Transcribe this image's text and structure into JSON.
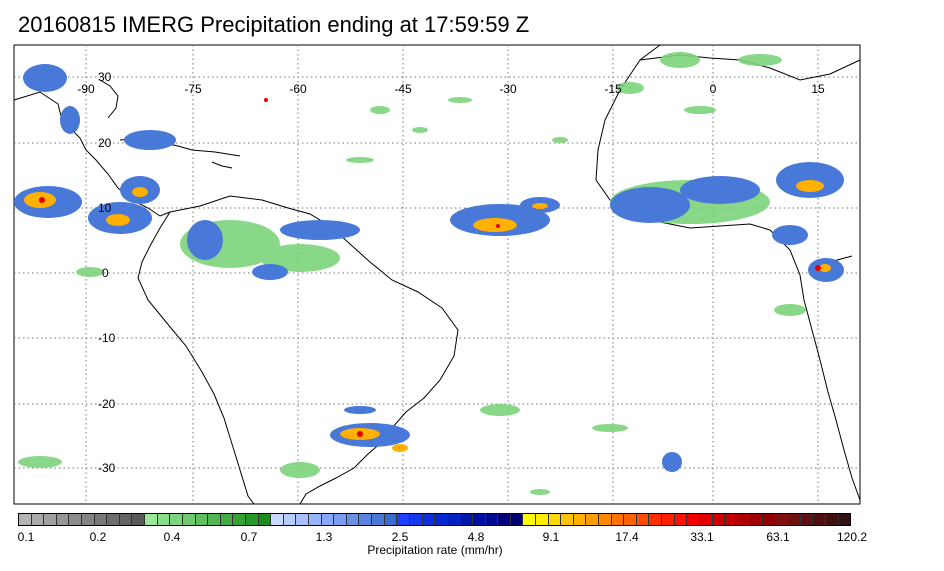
{
  "title": "20160815 IMERG Precipitation ending at 17:59:59 Z",
  "lon_labels": [
    "-90",
    "-75",
    "-60",
    "-45",
    "-30",
    "-15",
    "0",
    "15"
  ],
  "lat_labels": [
    "30",
    "20",
    "10",
    "0",
    "-10",
    "-20",
    "-30"
  ],
  "colorbar": {
    "title": "Precipitation rate (mm/hr)",
    "tick_labels": [
      "0.1",
      "0.2",
      "0.4",
      "0.7",
      "1.3",
      "2.5",
      "4.8",
      "9.1",
      "17.4",
      "33.1",
      "63.1",
      "120.2"
    ],
    "colors": [
      "#b4b4b4",
      "#aaaaaa",
      "#a0a0a0",
      "#969696",
      "#8c8c8c",
      "#828282",
      "#787878",
      "#6e6e6e",
      "#646464",
      "#5a5a5a",
      "#98e898",
      "#8ade8a",
      "#7cd47c",
      "#6eca6e",
      "#60c060",
      "#52b652",
      "#44ac44",
      "#36a236",
      "#289828",
      "#1a8e1a",
      "#c8d8ff",
      "#b8ccff",
      "#a8c0ff",
      "#98b4ff",
      "#88a8f8",
      "#789cf0",
      "#6890e8",
      "#5884e0",
      "#4878d8",
      "#386cd0",
      "#2040ff",
      "#1838f0",
      "#1030e0",
      "#0828d0",
      "#0020c0",
      "#0018b0",
      "#0010a0",
      "#000890",
      "#000080",
      "#000070",
      "#ffff00",
      "#ffec00",
      "#ffd800",
      "#ffc400",
      "#ffb000",
      "#ff9c00",
      "#ff8800",
      "#ff7400",
      "#ff6000",
      "#ff4c00",
      "#ff3000",
      "#ff2000",
      "#ff1000",
      "#f00000",
      "#e00000",
      "#d00000",
      "#c00000",
      "#b00000",
      "#a00000",
      "#900000",
      "#801010",
      "#701010",
      "#601010",
      "#501010",
      "#401010",
      "#301010"
    ]
  }
}
